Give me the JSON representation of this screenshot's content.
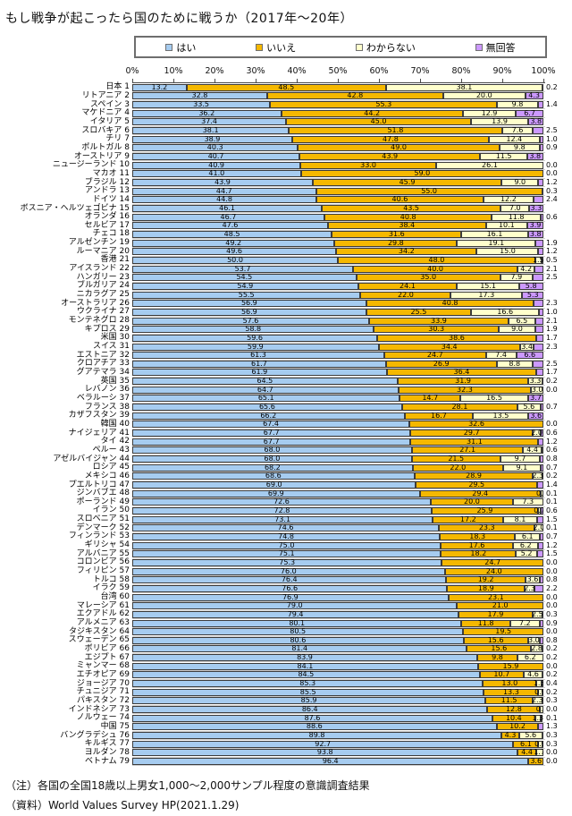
{
  "notes": [
    "（注）各国の全国18歳以上男女1,000～2,000サンプル程度の意識調査結果",
    "（資料）World Values Survey HP(2021.1.29)"
  ],
  "chart_data": {
    "type": "bar",
    "subtype": "horizontal-stacked",
    "title": "もし戦争が起こったら国のために戦うか（2017年～20年）",
    "xlim": [
      0,
      100
    ],
    "x_ticks": [
      "0%",
      "10%",
      "20%",
      "30%",
      "40%",
      "50%",
      "60%",
      "70%",
      "80%",
      "90%",
      "100%"
    ],
    "grid": "row-separators",
    "legend_position": "top",
    "legend": [
      {
        "key": "yes",
        "label": "はい",
        "color": "#A6CCF0"
      },
      {
        "key": "no",
        "label": "いいえ",
        "color": "#F5B800"
      },
      {
        "key": "dk",
        "label": "わからない",
        "color": "#FFFFCC"
      },
      {
        "key": "na",
        "label": "無回答",
        "color": "#CC99FF"
      }
    ],
    "na_label_inside_threshold": 3.0,
    "columns": [
      "rank",
      "name",
      "yes",
      "no",
      "dk",
      "na"
    ],
    "countries": [
      {
        "rank": 1,
        "name": "日本",
        "yes": 13.2,
        "no": 48.5,
        "dk": 38.1,
        "na": 0.2
      },
      {
        "rank": 2,
        "name": "リトアニア",
        "yes": 32.8,
        "no": 42.8,
        "dk": 20.0,
        "na": 4.3
      },
      {
        "rank": 3,
        "name": "スペイン",
        "yes": 33.5,
        "no": 55.3,
        "dk": 9.8,
        "na": 1.4
      },
      {
        "rank": 4,
        "name": "マケドニア",
        "yes": 36.2,
        "no": 44.2,
        "dk": 12.9,
        "na": 6.7
      },
      {
        "rank": 5,
        "name": "イタリア",
        "yes": 37.4,
        "no": 45.0,
        "dk": 13.9,
        "na": 3.8
      },
      {
        "rank": 6,
        "name": "スロバキア",
        "yes": 38.1,
        "no": 51.8,
        "dk": 7.6,
        "na": 2.5
      },
      {
        "rank": 7,
        "name": "チリ",
        "yes": 38.9,
        "no": 47.8,
        "dk": 12.4,
        "na": 1.0
      },
      {
        "rank": 8,
        "name": "ポルトガル",
        "yes": 40.3,
        "no": 49.0,
        "dk": 9.8,
        "na": 0.9
      },
      {
        "rank": 9,
        "name": "オーストリア",
        "yes": 40.7,
        "no": 43.9,
        "dk": 11.5,
        "na": 3.8
      },
      {
        "rank": 10,
        "name": "ニュージーランド",
        "yes": 40.9,
        "no": 33.0,
        "dk": 26.1,
        "na": 0.0
      },
      {
        "rank": 11,
        "name": "マカオ",
        "yes": 41.0,
        "no": 59.0,
        "dk": 0,
        "na": 0.0
      },
      {
        "rank": 12,
        "name": "ブラジル",
        "yes": 43.9,
        "no": 45.9,
        "dk": 9.0,
        "na": 1.2
      },
      {
        "rank": 13,
        "name": "アンドラ",
        "yes": 44.7,
        "no": 55.0,
        "dk": 0,
        "na": 0.3
      },
      {
        "rank": 14,
        "name": "ドイツ",
        "yes": 44.8,
        "no": 40.6,
        "dk": 12.2,
        "na": 2.4
      },
      {
        "rank": 15,
        "name": "ボスニア・ヘルツェゴビナ",
        "yes": 46.1,
        "no": 43.5,
        "dk": 7.0,
        "na": 3.3
      },
      {
        "rank": 16,
        "name": "オランダ",
        "yes": 46.7,
        "no": 40.8,
        "dk": 11.8,
        "na": 0.6
      },
      {
        "rank": 17,
        "name": "セルビア",
        "yes": 47.6,
        "no": 38.4,
        "dk": 10.1,
        "na": 3.9
      },
      {
        "rank": 18,
        "name": "チェコ",
        "yes": 48.5,
        "no": 31.6,
        "dk": 16.1,
        "na": 3.8
      },
      {
        "rank": 19,
        "name": "アルゼンチン",
        "yes": 49.2,
        "no": 29.8,
        "dk": 19.1,
        "na": 1.9
      },
      {
        "rank": 20,
        "name": "ルーマニア",
        "yes": 49.6,
        "no": 34.2,
        "dk": 15.0,
        "na": 1.2
      },
      {
        "rank": 21,
        "name": "香港",
        "yes": 50.0,
        "no": 48.0,
        "dk": 1.5,
        "na": 0.5
      },
      {
        "rank": 22,
        "name": "アイスランド",
        "yes": 53.7,
        "no": 40.0,
        "dk": 4.2,
        "na": 2.1
      },
      {
        "rank": 23,
        "name": "ハンガリー",
        "yes": 54.5,
        "no": 35.0,
        "dk": 7.9,
        "na": 2.5
      },
      {
        "rank": 24,
        "name": "ブルガリア",
        "yes": 54.9,
        "no": 24.1,
        "dk": 15.1,
        "na": 5.8
      },
      {
        "rank": 25,
        "name": "ニカラグア",
        "yes": 55.5,
        "no": 22.0,
        "dk": 17.3,
        "na": 5.3
      },
      {
        "rank": 26,
        "name": "オーストラリア",
        "yes": 56.9,
        "no": 40.8,
        "dk": 0,
        "na": 2.3
      },
      {
        "rank": 27,
        "name": "ウクライナ",
        "yes": 56.9,
        "no": 25.5,
        "dk": 16.6,
        "na": 1.0
      },
      {
        "rank": 28,
        "name": "モンテネグロ",
        "yes": 57.6,
        "no": 33.9,
        "dk": 6.5,
        "na": 2.1
      },
      {
        "rank": 29,
        "name": "キプロス",
        "yes": 58.8,
        "no": 30.3,
        "dk": 9.0,
        "na": 1.9
      },
      {
        "rank": 30,
        "name": "米国",
        "yes": 59.6,
        "no": 38.6,
        "dk": 0,
        "na": 1.7
      },
      {
        "rank": 31,
        "name": "スイス",
        "yes": 59.9,
        "no": 34.4,
        "dk": 3.4,
        "na": 2.3
      },
      {
        "rank": 32,
        "name": "エストニア",
        "yes": 61.3,
        "no": 24.7,
        "dk": 7.4,
        "na": 6.6
      },
      {
        "rank": 33,
        "name": "クロアチア",
        "yes": 61.7,
        "no": 26.9,
        "dk": 8.8,
        "na": 2.5
      },
      {
        "rank": 34,
        "name": "グアテマラ",
        "yes": 61.9,
        "no": 36.4,
        "dk": 0,
        "na": 1.7
      },
      {
        "rank": 35,
        "name": "英国",
        "yes": 64.5,
        "no": 31.9,
        "dk": 3.3,
        "na": 0.2
      },
      {
        "rank": 36,
        "name": "レバノン",
        "yes": 64.7,
        "no": 32.3,
        "dk": 3.0,
        "na": 0.0
      },
      {
        "rank": 37,
        "name": "ベラルーシ",
        "yes": 65.1,
        "no": 14.7,
        "dk": 16.5,
        "na": 3.7
      },
      {
        "rank": 38,
        "name": "フランス",
        "yes": 65.6,
        "no": 28.1,
        "dk": 5.6,
        "na": 0.7
      },
      {
        "rank": 39,
        "name": "カザフスタン",
        "yes": 66.2,
        "no": 16.7,
        "dk": 13.5,
        "na": 3.6
      },
      {
        "rank": 40,
        "name": "韓国",
        "yes": 67.4,
        "no": 32.6,
        "dk": 0,
        "na": 0.0
      },
      {
        "rank": 41,
        "name": "ナイジェリア",
        "yes": 67.7,
        "no": 29.7,
        "dk": 2.0,
        "na": 0.6
      },
      {
        "rank": 42,
        "name": "タイ",
        "yes": 67.7,
        "no": 31.1,
        "dk": 0,
        "na": 1.2
      },
      {
        "rank": 43,
        "name": "ペルー",
        "yes": 68.0,
        "no": 27.1,
        "dk": 4.4,
        "na": 0.6
      },
      {
        "rank": 44,
        "name": "アゼルバイジャン",
        "yes": 68.0,
        "no": 21.5,
        "dk": 9.7,
        "na": 0.8
      },
      {
        "rank": 45,
        "name": "ロシア",
        "yes": 68.2,
        "no": 22.0,
        "dk": 9.1,
        "na": 0.7
      },
      {
        "rank": 46,
        "name": "メキシコ",
        "yes": 68.6,
        "no": 28.9,
        "dk": 2.3,
        "na": 0.2
      },
      {
        "rank": 47,
        "name": "プエルトリコ",
        "yes": 69.0,
        "no": 29.5,
        "dk": 0,
        "na": 1.4
      },
      {
        "rank": 48,
        "name": "ジンバブエ",
        "yes": 69.9,
        "no": 29.4,
        "dk": 0.7,
        "na": 0.1
      },
      {
        "rank": 49,
        "name": "ポーランド",
        "yes": 72.6,
        "no": 20.0,
        "dk": 7.3,
        "na": 0.1
      },
      {
        "rank": 50,
        "name": "イラン",
        "yes": 72.8,
        "no": 25.9,
        "dk": 0.7,
        "na": 0.6
      },
      {
        "rank": 51,
        "name": "スロベニア",
        "yes": 73.1,
        "no": 17.2,
        "dk": 8.1,
        "na": 1.5
      },
      {
        "rank": 52,
        "name": "デンマーク",
        "yes": 74.6,
        "no": 23.3,
        "dk": 2.0,
        "na": 0.1
      },
      {
        "rank": 53,
        "name": "フィンランド",
        "yes": 74.8,
        "no": 18.3,
        "dk": 6.1,
        "na": 0.7
      },
      {
        "rank": 54,
        "name": "ギリシャ",
        "yes": 75.0,
        "no": 17.6,
        "dk": 6.2,
        "na": 1.2
      },
      {
        "rank": 55,
        "name": "アルバニア",
        "yes": 75.1,
        "no": 18.2,
        "dk": 5.2,
        "na": 1.5
      },
      {
        "rank": 56,
        "name": "コロンビア",
        "yes": 75.3,
        "no": 24.7,
        "dk": 0,
        "na": 0.0
      },
      {
        "rank": 57,
        "name": "フィリピン",
        "yes": 76.0,
        "no": 24.0,
        "dk": 0,
        "na": 0.0
      },
      {
        "rank": 58,
        "name": "トルコ",
        "yes": 76.4,
        "no": 19.2,
        "dk": 3.6,
        "na": 0.8
      },
      {
        "rank": 59,
        "name": "イラク",
        "yes": 76.6,
        "no": 18.9,
        "dk": 2.3,
        "na": 2.2
      },
      {
        "rank": 60,
        "name": "台湾",
        "yes": 76.9,
        "no": 23.1,
        "dk": 0,
        "na": 0.0
      },
      {
        "rank": 61,
        "name": "マレーシア",
        "yes": 79.0,
        "no": 21.0,
        "dk": 0,
        "na": 0.0
      },
      {
        "rank": 62,
        "name": "エクアドル",
        "yes": 79.4,
        "no": 17.9,
        "dk": 2.5,
        "na": 0.3
      },
      {
        "rank": 63,
        "name": "アルメニア",
        "yes": 80.1,
        "no": 11.8,
        "dk": 7.2,
        "na": 0.9
      },
      {
        "rank": 64,
        "name": "タジキスタン",
        "yes": 80.5,
        "no": 19.5,
        "dk": 0,
        "na": 0.0
      },
      {
        "rank": 65,
        "name": "スウェーデン",
        "yes": 80.6,
        "no": 15.6,
        "dk": 3.0,
        "na": 0.8
      },
      {
        "rank": 66,
        "name": "ボリビア",
        "yes": 81.4,
        "no": 15.6,
        "dk": 2.8,
        "na": 0.2
      },
      {
        "rank": 67,
        "name": "エジプト",
        "yes": 83.9,
        "no": 9.8,
        "dk": 6.2,
        "na": 0.2
      },
      {
        "rank": 68,
        "name": "ミャンマー",
        "yes": 84.1,
        "no": 15.9,
        "dk": 0,
        "na": 0.0
      },
      {
        "rank": 69,
        "name": "エチオピア",
        "yes": 84.5,
        "no": 10.7,
        "dk": 4.6,
        "na": 0.2
      },
      {
        "rank": 70,
        "name": "ジョージア",
        "yes": 85.3,
        "no": 13.0,
        "dk": 1.3,
        "na": 0.4
      },
      {
        "rank": 71,
        "name": "チュニジア",
        "yes": 85.5,
        "no": 13.3,
        "dk": 0.9,
        "na": 0.2
      },
      {
        "rank": 72,
        "name": "パキスタン",
        "yes": 85.9,
        "no": 11.5,
        "dk": 2.3,
        "na": 0.3
      },
      {
        "rank": 73,
        "name": "インドネシア",
        "yes": 86.4,
        "no": 12.8,
        "dk": 0.8,
        "na": 0.0
      },
      {
        "rank": 74,
        "name": "ノルウェー",
        "yes": 87.6,
        "no": 10.4,
        "dk": 1.3,
        "na": 0.1
      },
      {
        "rank": 75,
        "name": "中国",
        "yes": 88.6,
        "no": 10.2,
        "dk": 0,
        "na": 1.3
      },
      {
        "rank": 76,
        "name": "バングラデシュ",
        "yes": 89.8,
        "no": 4.3,
        "dk": 5.6,
        "na": 0.3
      },
      {
        "rank": 77,
        "name": "キルギス",
        "yes": 92.7,
        "no": 6.1,
        "dk": 0.9,
        "na": 0.3
      },
      {
        "rank": 78,
        "name": "ヨルダン",
        "yes": 93.8,
        "no": 4.4,
        "dk": 1.7,
        "na": 0.0
      },
      {
        "rank": 79,
        "name": "ベトナム",
        "yes": 96.4,
        "no": 3.6,
        "dk": 0,
        "na": 0.0
      }
    ]
  }
}
